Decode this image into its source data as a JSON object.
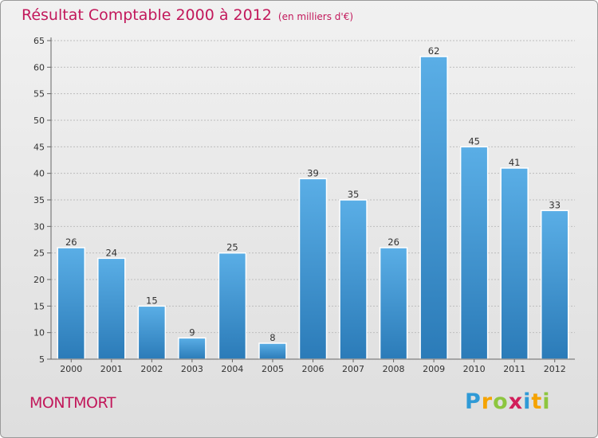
{
  "header": {
    "title": "Résultat Comptable 2000 à 2012",
    "subtitle": "(en milliers d'€)"
  },
  "footer": {
    "commune": "MONTMORT",
    "logo": [
      "P",
      "r",
      "o",
      "x",
      "i",
      "t",
      "i"
    ]
  },
  "colors": {
    "accent": "#c2185b",
    "bar_top": "#5aaee6",
    "bar_bottom": "#2b7bb8",
    "grid": "#bdbdbd",
    "logo": [
      "#2f9ad6",
      "#f5a300",
      "#8dc63f",
      "#d11f5a",
      "#2f9ad6",
      "#f5a300",
      "#8dc63f"
    ]
  },
  "chart_data": {
    "type": "bar",
    "categories": [
      "2000",
      "2001",
      "2002",
      "2003",
      "2004",
      "2005",
      "2006",
      "2007",
      "2008",
      "2009",
      "2010",
      "2011",
      "2012"
    ],
    "values": [
      26,
      24,
      15,
      9,
      25,
      8,
      39,
      35,
      26,
      62,
      45,
      41,
      33
    ],
    "title": "Résultat Comptable 2000 à 2012",
    "subtitle": "(en milliers d'€)",
    "xlabel": "",
    "ylabel": "",
    "ylim": [
      5,
      65
    ],
    "yticks": [
      5,
      10,
      15,
      20,
      25,
      30,
      35,
      40,
      45,
      50,
      55,
      60,
      65
    ],
    "grid": true,
    "legend": "none"
  }
}
